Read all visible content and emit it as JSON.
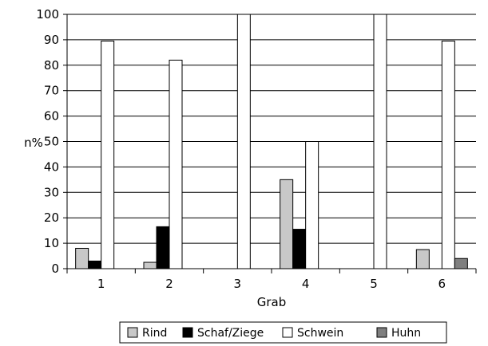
{
  "chart_data": {
    "type": "bar",
    "title": "",
    "xlabel": "Grab",
    "ylabel": "n%",
    "ylim": [
      0,
      100
    ],
    "yticks": [
      0,
      10,
      20,
      30,
      40,
      50,
      60,
      70,
      80,
      90,
      100
    ],
    "grid": "horizontal",
    "legend_position": "bottom",
    "categories": [
      "1",
      "2",
      "3",
      "4",
      "5",
      "6"
    ],
    "series": [
      {
        "name": "Rind",
        "color": "#c8c8c8",
        "values": [
          8,
          2.5,
          0,
          35,
          0,
          7.5
        ]
      },
      {
        "name": "Schaf/Ziege",
        "color": "#000000",
        "values": [
          3,
          16.5,
          0,
          15.5,
          0,
          0
        ]
      },
      {
        "name": "Schwein",
        "color": "#ffffff",
        "values": [
          89.5,
          82,
          100,
          50,
          100,
          89.5
        ]
      },
      {
        "name": "Huhn",
        "color": "#7f7f7f",
        "values": [
          0,
          0,
          0,
          0,
          0,
          4
        ]
      }
    ]
  }
}
